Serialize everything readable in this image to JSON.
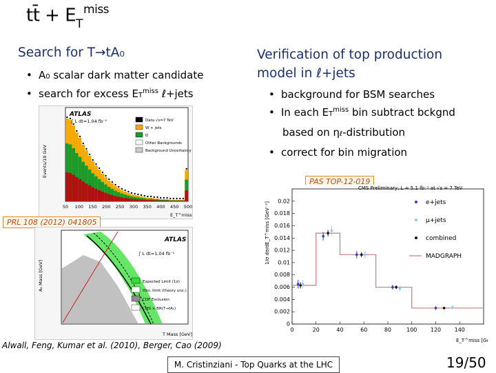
{
  "slide": {
    "title_main": "tt̄ + E",
    "title_sub": "T",
    "title_sup": "miss",
    "left_heading": "Search for T→tA₀",
    "left_bullets": [
      {
        "pre": "A",
        "sub": "0",
        "post": " scalar dark matter candidate"
      },
      {
        "pre": "search for excess E",
        "sub": "T",
        "sup": "miss",
        "post": " ℓ+jets"
      }
    ],
    "right_heading_1": "Verification of top production",
    "right_heading_2": "model in ℓ+jets",
    "right_bullets": [
      {
        "pre": "background for BSM searches"
      },
      {
        "pre": "In each E",
        "sub": "T",
        "sup": "miss",
        "post": " bin subtract bckgnd"
      },
      {
        "pre": "based on η",
        "sub": "ℓ",
        "post": "-distribution",
        "indent": true
      },
      {
        "pre": "correct for bin migration"
      }
    ],
    "pas_label": "PAS TOP-12-019",
    "prl_label": "PRL 108 (2012) 041805",
    "references": "Alwall, Feng, Kumar et al. (2010), Berger, Cao (2009)",
    "footer": "M. Cristinziani - Top Quarks at the LHC",
    "page_number": "19/50"
  },
  "figure_atlas_hist": {
    "brand": "ATLAS",
    "lumi": "∫ L dt=1.04 fb⁻¹",
    "ylabel": "Events/10 GeV",
    "xlabel": "E_T^miss [GeV]",
    "legend": [
      "Data √s=7 TeV",
      "W + jets",
      "tt̄",
      "Other Backgrounds",
      "Background Uncertainty"
    ],
    "xticks": [
      "50",
      "100",
      "150",
      "200",
      "250",
      "300",
      "350",
      "400",
      "450",
      "500"
    ],
    "colors": {
      "wjets": "#f5a800",
      "ttbar": "#1a9a2a",
      "other": "#b01010"
    }
  },
  "figure_atlas_limit": {
    "brand": "ATLAS",
    "lumi": "∫ L dt=1.04 fb⁻¹",
    "ylabel": "A₀ Mass [GeV]",
    "xlabel": "T Mass [GeV]",
    "legend": [
      "Expected Limit (1σ)",
      "Obs. limit (theory unc.)",
      "CDF Exclusion",
      "CMS × BR(T→tA₀)"
    ]
  },
  "chart_data": {
    "type": "scatter",
    "title": "CMS Preliminary, L = 5.1 fb⁻¹ at √s = 7 TeV",
    "xlabel": "E_T^miss [GeV]",
    "ylabel": "1/σ dσ/dE_T^miss [GeV⁻¹]",
    "xlim": [
      0,
      160
    ],
    "ylim": [
      0,
      0.022
    ],
    "xticks": [
      0,
      20,
      40,
      60,
      80,
      100,
      120,
      140
    ],
    "yticks": [
      0,
      0.002,
      0.004,
      0.006,
      0.008,
      0.01,
      0.012,
      0.014,
      0.016,
      0.018,
      0.02
    ],
    "ytick_labels": [
      "0",
      "0.002",
      "0.004",
      "0.006",
      "0.008",
      "0.01",
      "0.012",
      "0.014",
      "0.016",
      "0.018",
      "0.02"
    ],
    "series": [
      {
        "name": "e+jets",
        "color": "#2a3fd0",
        "x": [
          5,
          26,
          54,
          84,
          120
        ],
        "y": [
          0.0065,
          0.0143,
          0.0113,
          0.006,
          0.0026
        ],
        "err": [
          0.0007,
          0.0007,
          0.0006,
          0.0004,
          0.0003
        ]
      },
      {
        "name": "μ+jets",
        "color": "#8ec8ea",
        "x": [
          9,
          33,
          61,
          90,
          134
        ],
        "y": [
          0.0065,
          0.0152,
          0.0113,
          0.0058,
          0.0027
        ],
        "err": [
          0.0007,
          0.0008,
          0.0006,
          0.0004,
          0.0003
        ]
      },
      {
        "name": "combined",
        "color": "#111111",
        "x": [
          7,
          30,
          58,
          87,
          127
        ],
        "y": [
          0.0063,
          0.0148,
          0.0113,
          0.006,
          0.0026
        ],
        "err": [
          0.0005,
          0.0005,
          0.0004,
          0.0003,
          0.0002
        ]
      }
    ],
    "madgraph": {
      "name": "MADGRAPH",
      "color": "#c08080",
      "edges": [
        0,
        20,
        40,
        70,
        100,
        160
      ],
      "values": [
        0.0063,
        0.0148,
        0.0113,
        0.006,
        0.0026
      ]
    }
  }
}
